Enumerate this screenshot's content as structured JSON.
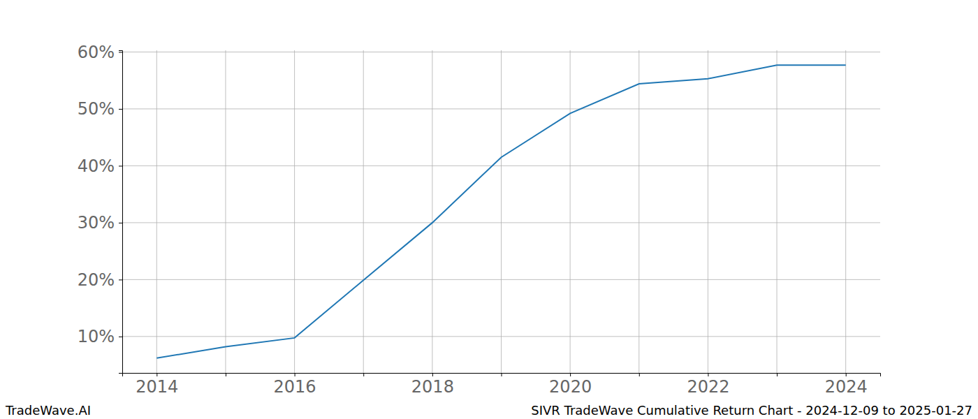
{
  "chart_data": {
    "type": "line",
    "title": "SIVR TradeWave Cumulative Return Chart - 2024-12-09 to 2025-01-27",
    "annotations": [
      "TradeWave.AI"
    ],
    "x": [
      2014,
      2015,
      2016,
      2017,
      2018,
      2019,
      2020,
      2021,
      2022,
      2023,
      2024
    ],
    "series": [
      {
        "name": "SIVR",
        "color": "#1f77b4",
        "values": [
          6.2,
          8.2,
          9.75,
          19.9,
          30.0,
          41.5,
          49.2,
          54.4,
          55.3,
          57.7,
          57.7
        ]
      }
    ],
    "xlim": [
      2013.5,
      2024.5
    ],
    "xticks": [
      2014,
      {
        "value": 2015,
        "label": null
      },
      2016,
      {
        "value": 2017,
        "label": null
      },
      2018,
      {
        "value": 2019,
        "label": null
      },
      2020,
      {
        "value": 2021,
        "label": null
      },
      2022,
      {
        "value": 2023,
        "label": null
      },
      2024
    ],
    "ylim": [
      3.6,
      60.3
    ],
    "yticks": [
      {
        "value": 10,
        "label": "10%"
      },
      {
        "value": 20,
        "label": "20%"
      },
      {
        "value": 30,
        "label": "30%"
      },
      {
        "value": 40,
        "label": "40%"
      },
      {
        "value": 50,
        "label": "50%"
      },
      {
        "value": 60,
        "label": "60%"
      }
    ],
    "grid": true
  }
}
